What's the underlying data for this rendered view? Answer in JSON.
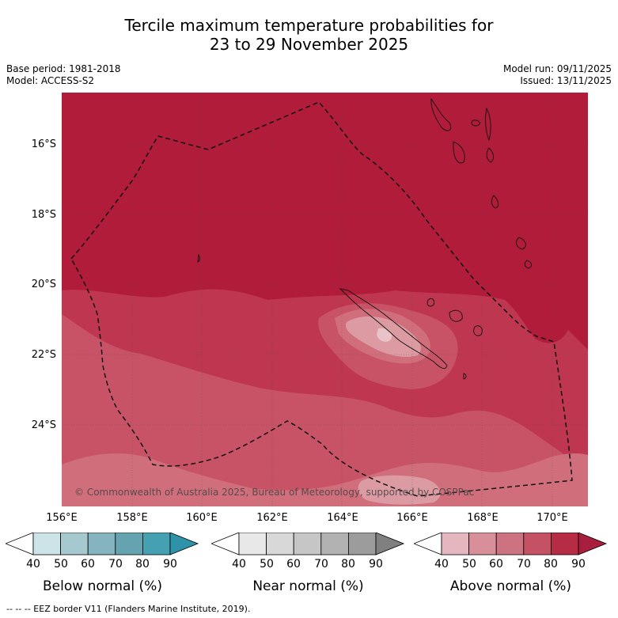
{
  "title_line1": "Tercile maximum temperature probabilities for",
  "title_line2": "23 to 29 November 2025",
  "base_period": "Base period: 1981-2018",
  "model": "Model: ACCESS-S2",
  "model_run": "Model run: 09/11/2025",
  "issued": "Issued: 13/11/2025",
  "copyright": "© Commonwealth of Australia 2025, Bureau of Meteorology, supported by COSPPac",
  "lat_ticks": [
    "16°S",
    "18°S",
    "20°S",
    "22°S",
    "24°S"
  ],
  "lon_ticks": [
    "156°E",
    "158°E",
    "160°E",
    "162°E",
    "164°E",
    "166°E",
    "168°E",
    "170°E"
  ],
  "colorbars": [
    {
      "name": "below",
      "title": "Below normal (%)",
      "labels": [
        "40",
        "50",
        "60",
        "70",
        "80",
        "90"
      ],
      "colors": [
        "#cce3e8",
        "#a6c9cf",
        "#86b4be",
        "#65a3b1",
        "#45a0b2",
        "#2e93a8"
      ]
    },
    {
      "name": "near",
      "title": "Near normal (%)",
      "labels": [
        "40",
        "50",
        "60",
        "70",
        "80",
        "90"
      ],
      "colors": [
        "#e8e8e8",
        "#d8d8d8",
        "#c6c6c6",
        "#b2b2b2",
        "#9c9c9c",
        "#808080"
      ]
    },
    {
      "name": "above",
      "title": "Above normal (%)",
      "labels": [
        "40",
        "50",
        "60",
        "70",
        "80",
        "90"
      ],
      "colors": [
        "#e4b6bd",
        "#d98f99",
        "#cc7280",
        "#c45264",
        "#b62c45",
        "#a71f3d"
      ]
    }
  ],
  "map_colors": {
    "above_90": "#b01c3a",
    "above_80": "#be3650",
    "above_70": "#c85366",
    "above_60": "#d06e7c",
    "above_50": "#dc9aa3",
    "above_40": "#eac3c8"
  },
  "footer": "--  --  -- EEZ border V11 (Flanders Marine Institute, 2019)."
}
